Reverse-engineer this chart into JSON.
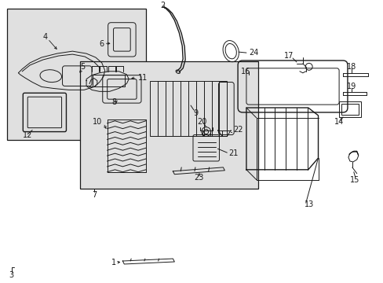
{
  "bg_color": "#ffffff",
  "line_color": "#1a1a1a",
  "inset_bg": "#e0e0e0",
  "main_bg": "#e0e0e0",
  "figsize": [
    4.89,
    3.6
  ],
  "dpi": 100,
  "labels": {
    "1": [
      165,
      18,
      158,
      24
    ],
    "2": [
      207,
      348,
      213,
      340
    ],
    "3": [
      14,
      12,
      20,
      18
    ],
    "4": [
      55,
      306,
      65,
      298
    ],
    "5": [
      100,
      279,
      107,
      272
    ],
    "6": [
      127,
      296,
      127,
      290
    ],
    "7": [
      118,
      34,
      125,
      40
    ],
    "8": [
      148,
      232,
      153,
      227
    ],
    "9": [
      243,
      223,
      248,
      218
    ],
    "10": [
      149,
      205,
      155,
      210
    ],
    "11": [
      172,
      270,
      180,
      263
    ],
    "12": [
      28,
      217,
      35,
      222
    ],
    "13": [
      384,
      90,
      390,
      96
    ],
    "14": [
      405,
      197,
      411,
      203
    ],
    "15": [
      444,
      90,
      451,
      96
    ],
    "16": [
      310,
      268,
      316,
      263
    ],
    "17": [
      368,
      278,
      373,
      272
    ],
    "18": [
      449,
      264,
      455,
      258
    ],
    "19": [
      449,
      236,
      455,
      230
    ],
    "20": [
      272,
      199,
      278,
      193
    ],
    "21": [
      289,
      168,
      295,
      162
    ],
    "22": [
      296,
      195,
      302,
      189
    ],
    "23": [
      252,
      148,
      258,
      143
    ],
    "24": [
      327,
      298,
      332,
      292
    ]
  }
}
